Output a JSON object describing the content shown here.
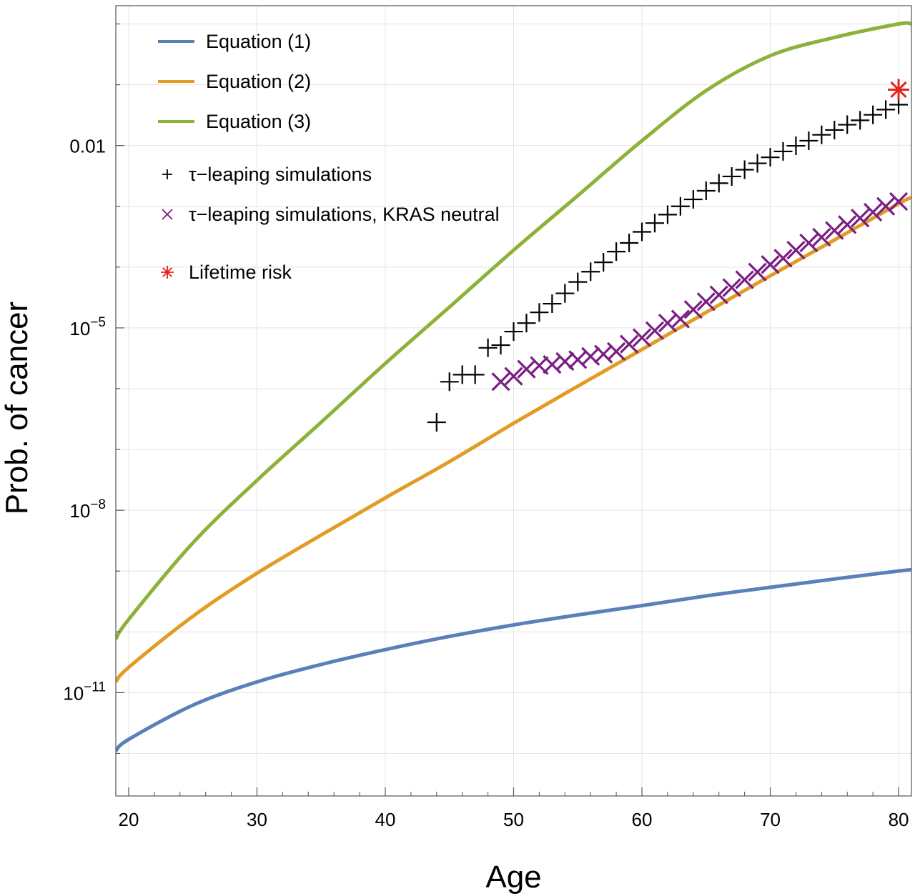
{
  "chart_data": {
    "type": "line",
    "xlabel": "Age",
    "ylabel": "Prob. of cancer",
    "xlim": [
      19,
      81
    ],
    "ylim_log10": [
      -12.7,
      0.3
    ],
    "yscale": "log",
    "grid": true,
    "legend_placement": "top-left",
    "x_ticks": [
      20,
      30,
      40,
      50,
      60,
      70,
      80
    ],
    "x_tick_labels": [
      "20",
      "30",
      "40",
      "50",
      "60",
      "70",
      "80"
    ],
    "y_ticks_log10": [
      -11,
      -8,
      -5,
      -2
    ],
    "y_tick_labels": [
      {
        "base": "10",
        "exp": "−11"
      },
      {
        "base": "10",
        "exp": "−8"
      },
      {
        "base": "10",
        "exp": "−5"
      },
      {
        "base": "0.01",
        "exp": ""
      }
    ],
    "series": [
      {
        "name": "Equation (1)",
        "marker": "line",
        "color": "#5b80b9",
        "x": [
          19,
          20,
          25,
          30,
          35,
          40,
          45,
          50,
          55,
          60,
          65,
          70,
          75,
          80,
          81
        ],
        "y": [
          1.1e-12,
          1.7e-12,
          6.2e-12,
          1.5e-11,
          2.9e-11,
          5.1e-11,
          8.4e-11,
          1.3e-10,
          1.9e-10,
          2.7e-10,
          3.9e-10,
          5.4e-10,
          7.4e-10,
          1e-09,
          1.05e-09
        ]
      },
      {
        "name": "Equation (2)",
        "marker": "line",
        "color": "#e19c24",
        "x": [
          19,
          20,
          25,
          30,
          35,
          40,
          45,
          50,
          55,
          60,
          65,
          70,
          75,
          80,
          81
        ],
        "y": [
          1.5e-11,
          2.6e-11,
          1.8e-10,
          9.2e-10,
          3.9e-09,
          1.6e-08,
          6.3e-08,
          2.7e-07,
          1.1e-06,
          4.4e-06,
          1.8e-05,
          7.2e-05,
          0.00028,
          0.0011,
          0.0014
        ]
      },
      {
        "name": "Equation (3)",
        "marker": "line",
        "color": "#8db23a",
        "x": [
          19,
          20,
          25,
          30,
          35,
          40,
          45,
          50,
          55,
          60,
          65,
          70,
          75,
          80,
          81
        ],
        "y": [
          7.6e-11,
          1.6e-10,
          2.9e-09,
          3.1e-08,
          2.8e-07,
          2.6e-06,
          2.2e-05,
          0.00019,
          0.0015,
          0.012,
          0.08,
          0.3,
          0.6,
          1.0,
          1.0
        ]
      },
      {
        "name": "τ−leaping simulations",
        "marker": "plus",
        "color": "#000000",
        "x": [
          44,
          45,
          46,
          47,
          48,
          49,
          50,
          51,
          52,
          53,
          54,
          55,
          56,
          57,
          58,
          59,
          60,
          61,
          62,
          63,
          64,
          65,
          66,
          67,
          68,
          69,
          70,
          71,
          72,
          73,
          74,
          75,
          76,
          77,
          78,
          79,
          80
        ],
        "y": [
          2.8e-07,
          1.3e-06,
          1.7e-06,
          1.7e-06,
          4.7e-06,
          5.2e-06,
          8.7e-06,
          1.2e-05,
          1.8e-05,
          2.5e-05,
          3.7e-05,
          5.7e-05,
          8.4e-05,
          0.00012,
          0.00018,
          0.00025,
          0.00038,
          0.00053,
          0.00073,
          0.001,
          0.0013,
          0.0018,
          0.0024,
          0.0031,
          0.004,
          0.0051,
          0.0064,
          0.008,
          0.0099,
          0.012,
          0.015,
          0.018,
          0.022,
          0.026,
          0.032,
          0.039,
          0.047
        ]
      },
      {
        "name": "τ−leaping simulations, KRAS neutral",
        "marker": "cross",
        "color": "#7b1e84",
        "x": [
          49,
          50,
          51,
          52,
          53,
          54,
          55,
          56,
          57,
          58,
          59,
          60,
          61,
          62,
          63,
          64,
          65,
          66,
          67,
          68,
          69,
          70,
          71,
          72,
          73,
          74,
          75,
          76,
          77,
          78,
          79,
          80
        ],
        "y": [
          1.3e-06,
          1.6e-06,
          2.1e-06,
          2.4e-06,
          2.5e-06,
          2.8e-06,
          3e-06,
          3.4e-06,
          3.7e-06,
          4.1e-06,
          5.4e-06,
          6.9e-06,
          9e-06,
          1.2e-05,
          1.4e-05,
          2e-05,
          2.7e-05,
          3.5e-05,
          4.6e-05,
          6.2e-05,
          8.3e-05,
          0.00011,
          0.00014,
          0.00019,
          0.00025,
          0.00031,
          0.0004,
          0.0005,
          0.00064,
          0.0008,
          0.001,
          0.0012
        ]
      },
      {
        "name": "Lifetime risk",
        "marker": "asterisk",
        "color": "#e2231a",
        "x": [
          80
        ],
        "y": [
          0.083
        ]
      }
    ]
  }
}
